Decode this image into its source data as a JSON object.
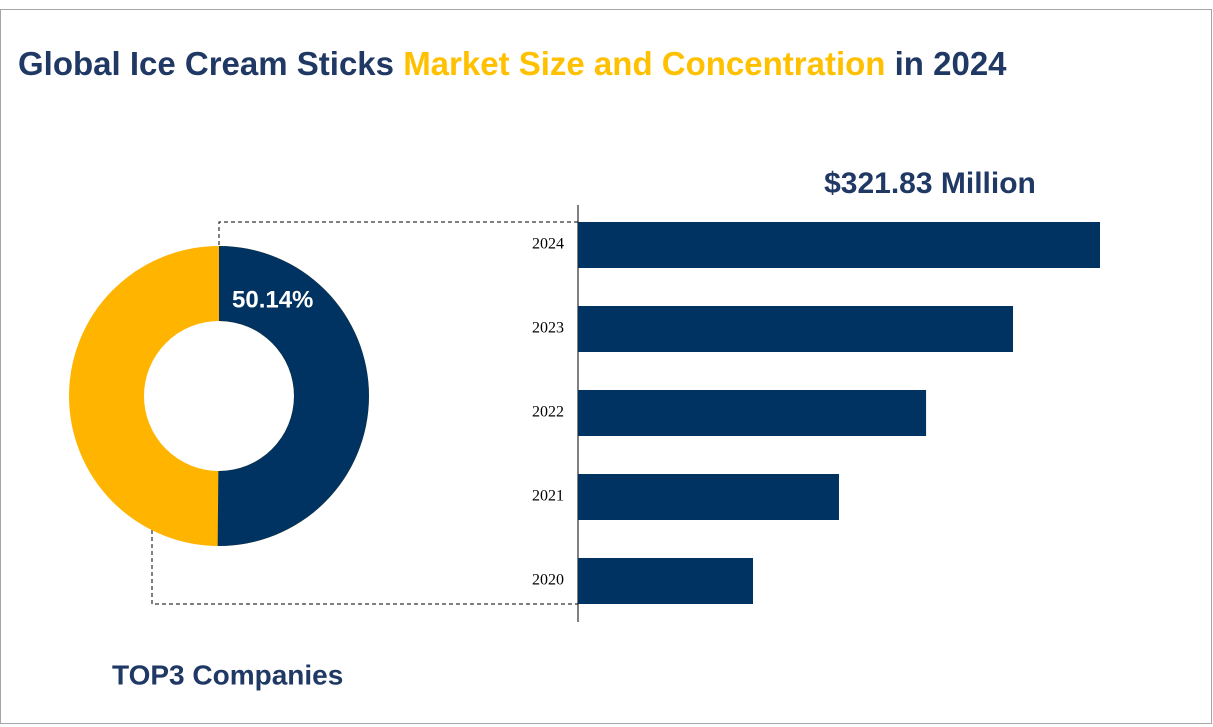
{
  "title": {
    "part1": "Global Ice Cream Sticks",
    "part2": "Market Size and Concentration",
    "part3": "in 2024"
  },
  "chart_data": [
    {
      "type": "pie",
      "caption": "TOP3 Companies",
      "values": [
        50.14
      ],
      "value_labels": [
        "50.14%"
      ],
      "color": "#003361",
      "rest_color": "#ffb400"
    },
    {
      "type": "bar",
      "orientation": "horizontal",
      "categories": [
        "2020",
        "2021",
        "2022",
        "2023",
        "2024"
      ],
      "values": [
        107.9,
        160.9,
        214.6,
        268.2,
        321.83
      ],
      "value_labels": [
        null,
        null,
        null,
        null,
        "$321.83 Million"
      ],
      "color": "#003361"
    }
  ]
}
